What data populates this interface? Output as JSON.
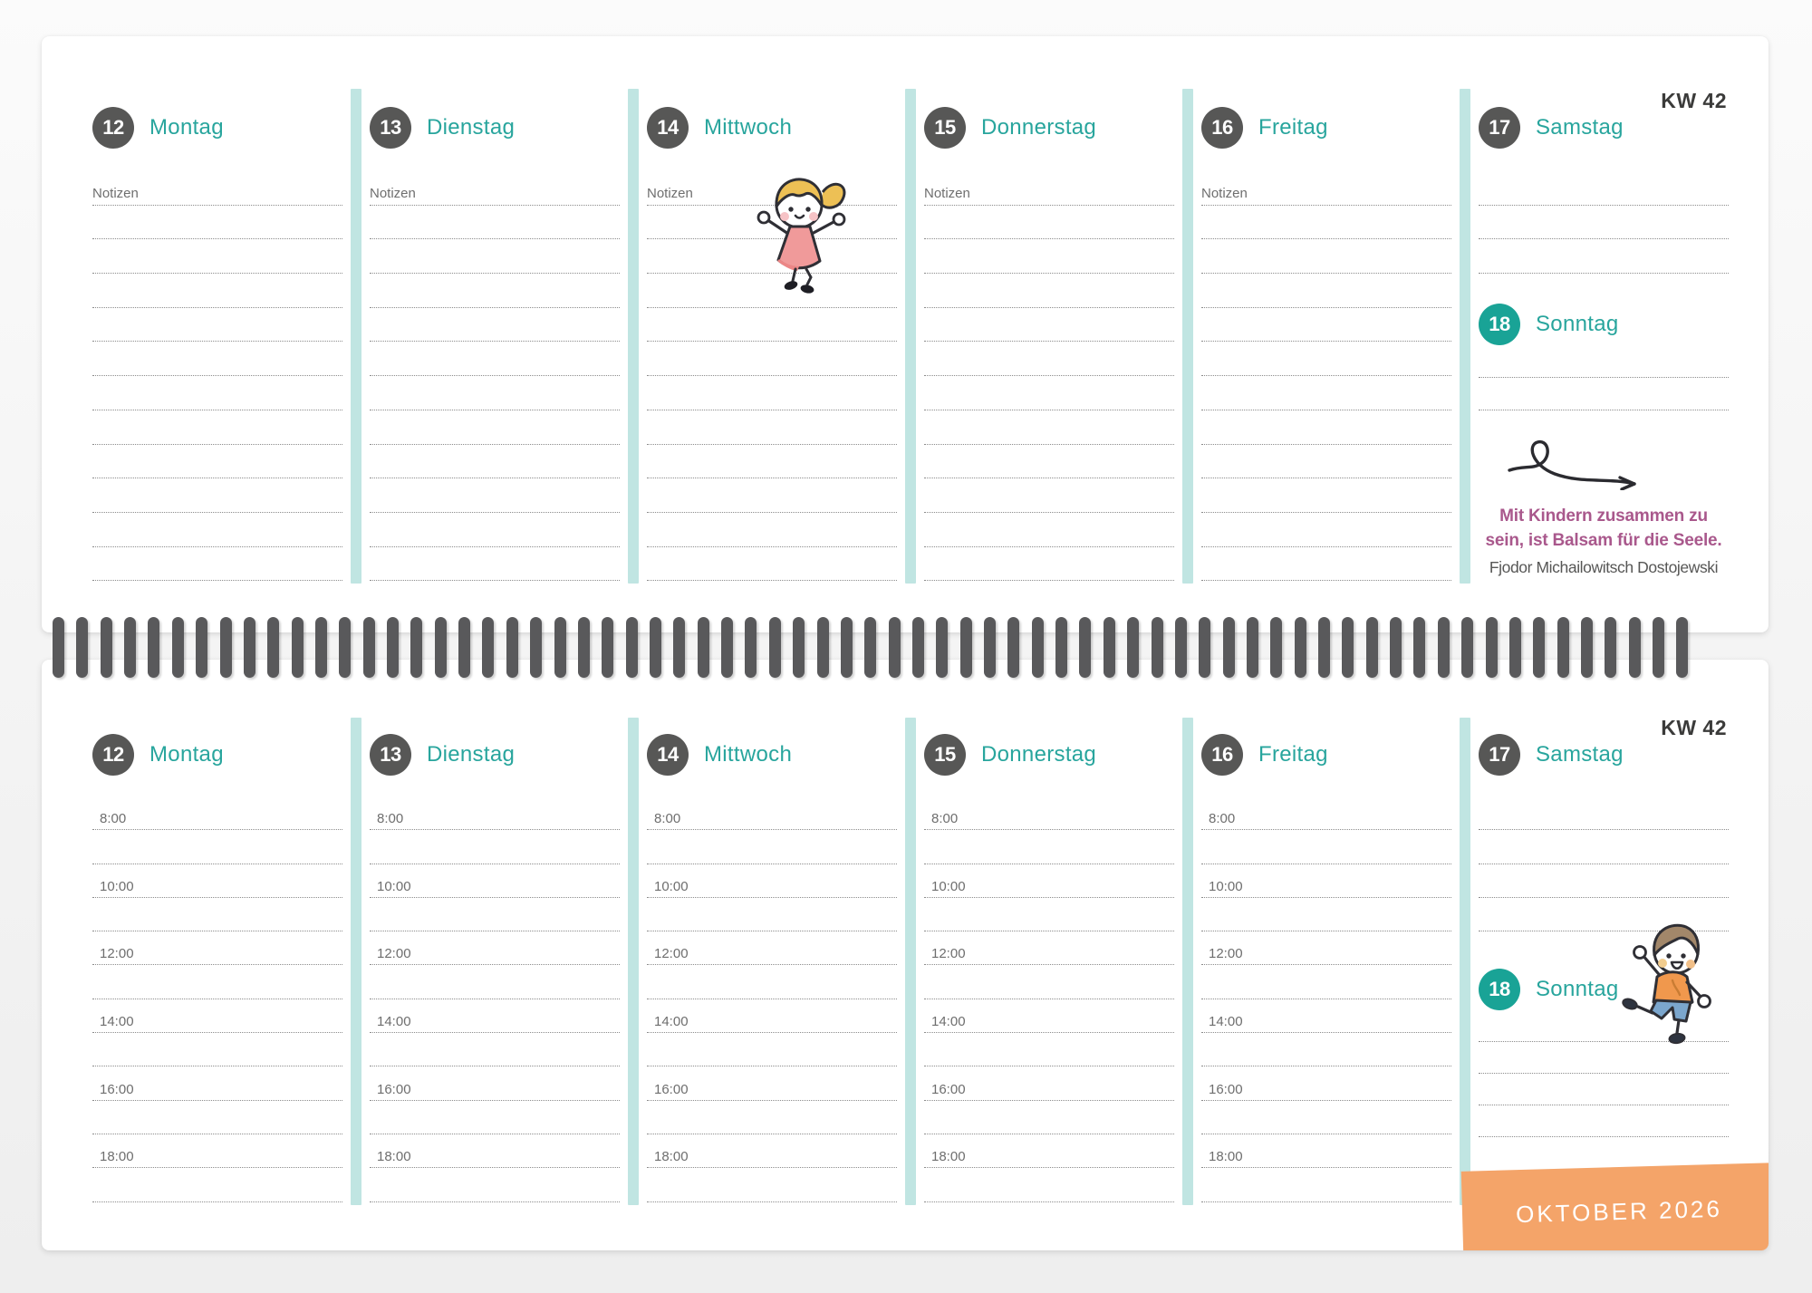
{
  "week_label": "KW 42",
  "notes_label": "Notizen",
  "times": [
    "8:00",
    "10:00",
    "12:00",
    "14:00",
    "16:00",
    "18:00"
  ],
  "days": [
    {
      "num": "12",
      "label": "Montag"
    },
    {
      "num": "13",
      "label": "Dienstag"
    },
    {
      "num": "14",
      "label": "Mittwoch"
    },
    {
      "num": "15",
      "label": "Donnerstag"
    },
    {
      "num": "16",
      "label": "Freitag"
    },
    {
      "num": "17",
      "label": "Samstag"
    },
    {
      "num": "18",
      "label": "Sonntag"
    }
  ],
  "quote": {
    "line1": "Mit Kindern zusammen zu",
    "line2": "sein, ist Balsam für die Seele.",
    "text": "Mit Kindern zusammen zu sein, ist Balsam für die Seele.",
    "author": "Fjodor Michailowitsch Dostojewski"
  },
  "banner": {
    "month_label": "OKTOBER 2026"
  },
  "colors": {
    "accent_teal": "#28a59d",
    "sunday_circle_teal": "#19a396",
    "weekday_circle_gray": "#575756",
    "divider_teal": "#c0e5e2",
    "banner_orange": "#f4a469",
    "quote_purple": "#a9588c",
    "spiral_gray": "#59595b"
  },
  "icons": {
    "girl": "jumping-girl-illustration",
    "boy": "dancing-boy-illustration",
    "arrow": "curly-arrow-doodle"
  }
}
